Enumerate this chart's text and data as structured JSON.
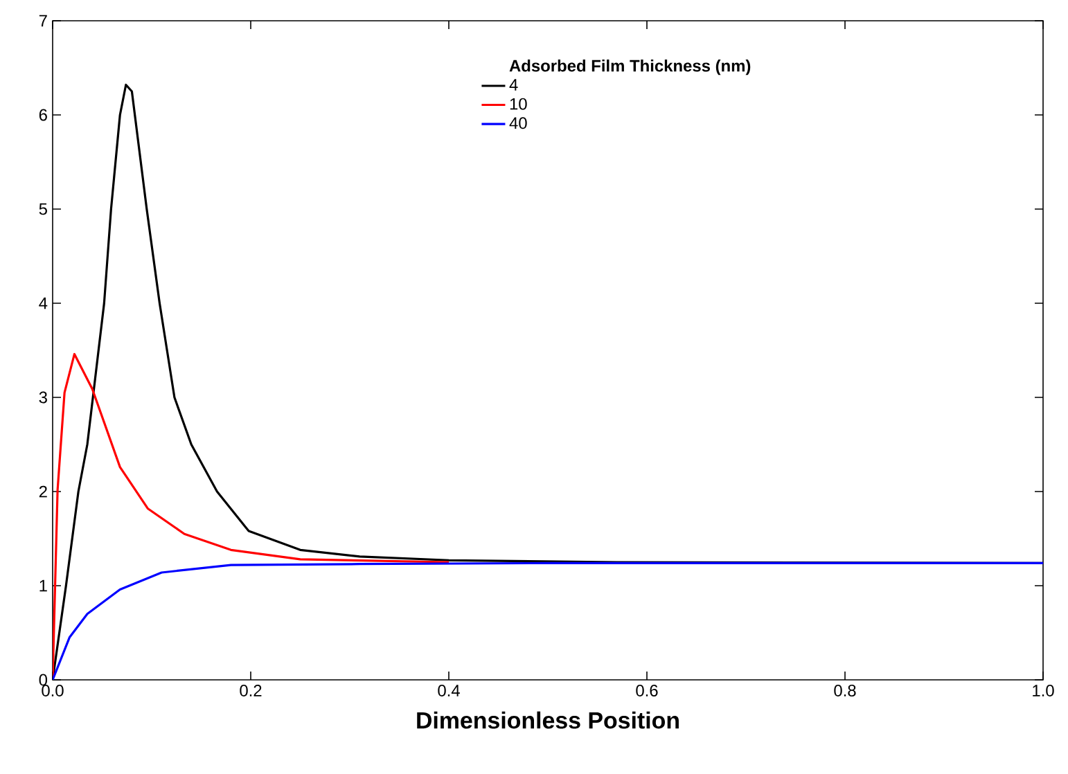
{
  "chart_data": {
    "type": "line",
    "xlabel": "Dimensionless Position",
    "legend_title": "Adsorbed Film Thickness (nm)",
    "legend": "top",
    "grid": false,
    "marker": "none",
    "line_style": "solid",
    "xlim": [
      0,
      1
    ],
    "ylim": [
      0,
      7
    ],
    "xticks": [
      {
        "value": 0,
        "label": "0.0"
      },
      {
        "value": 0.2,
        "label": "0.2"
      },
      {
        "value": 0.4,
        "label": "0.4"
      },
      {
        "value": 0.6,
        "label": "0.6"
      },
      {
        "value": 0.8,
        "label": "0.8"
      },
      {
        "value": 1,
        "label": "1.0"
      }
    ],
    "yticks": [
      0,
      1,
      2,
      3,
      4,
      5,
      6,
      7
    ],
    "series": [
      {
        "name": "4",
        "color": "#000000",
        "x": [
          0,
          0.0135,
          0.026,
          0.035,
          0.052,
          0.059,
          0.068,
          0.074,
          0.08,
          0.095,
          0.108,
          0.123,
          0.14,
          0.166,
          0.198,
          0.25,
          0.31,
          0.4,
          0.57,
          1.0
        ],
        "values": [
          0,
          1,
          2,
          2.5,
          4,
          5,
          6,
          6.32,
          6.25,
          5,
          4,
          3,
          2.5,
          2,
          1.58,
          1.38,
          1.31,
          1.27,
          1.25,
          1.24
        ]
      },
      {
        "name": "10",
        "color": "#ff0000",
        "x": [
          0,
          0.005,
          0.012,
          0.022,
          0.04,
          0.068,
          0.096,
          0.133,
          0.18,
          0.25,
          0.4
        ],
        "values": [
          0,
          2.02,
          3.05,
          3.46,
          3.09,
          2.26,
          1.82,
          1.55,
          1.38,
          1.28,
          1.25
        ]
      },
      {
        "name": "40",
        "color": "#0000ff",
        "x": [
          0,
          0.017,
          0.035,
          0.068,
          0.11,
          0.18,
          0.31,
          0.5,
          1.0
        ],
        "values": [
          0,
          0.45,
          0.7,
          0.96,
          1.14,
          1.22,
          1.23,
          1.24,
          1.24
        ]
      }
    ]
  }
}
